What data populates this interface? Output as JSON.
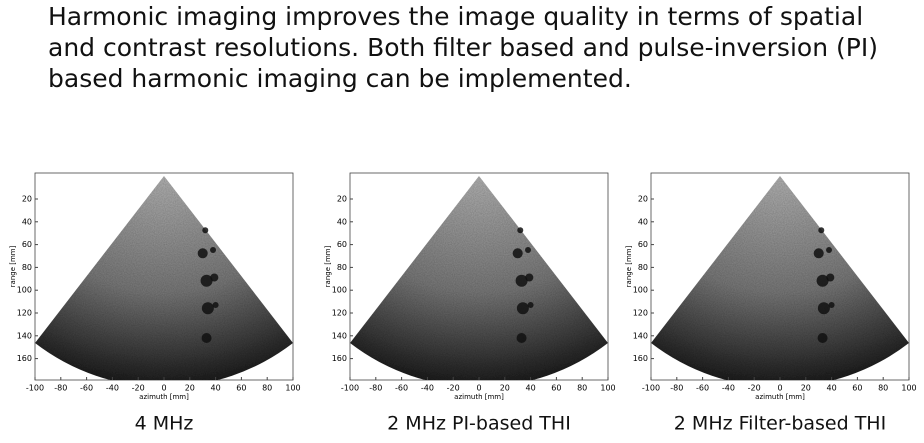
{
  "header": {
    "lines": [
      "Harmonic imaging improves the image quality in terms of spatial",
      "and contrast resolutions. Both filter based and pulse-inversion (PI)",
      "based harmonic imaging can be implemented."
    ]
  },
  "panels": [
    {
      "caption": "4 MHz",
      "xlabel": "azimuth [mm]",
      "ylabel": "range [mm]",
      "xticks": [
        -100,
        -80,
        -60,
        -40,
        -20,
        0,
        20,
        40,
        60,
        80,
        100
      ],
      "yticks": [
        20,
        40,
        60,
        80,
        100,
        120,
        140,
        160
      ]
    },
    {
      "caption": "2 MHz  PI-based THI",
      "xlabel": "azimuth [mm]",
      "ylabel": "range [mm]",
      "xticks": [
        -100,
        -80,
        -60,
        -40,
        -20,
        0,
        20,
        40,
        60,
        80,
        100
      ],
      "yticks": [
        20,
        40,
        60,
        80,
        100,
        120,
        140,
        160
      ]
    },
    {
      "caption": "2 MHz  Filter-based THI",
      "xlabel": "azimuth [mm]",
      "ylabel": "range [mm]",
      "xticks": [
        -100,
        -80,
        -60,
        -40,
        -20,
        0,
        20,
        40,
        60,
        80,
        100
      ],
      "yticks": [
        20,
        40,
        60,
        80,
        100,
        120,
        140,
        160
      ]
    }
  ]
}
